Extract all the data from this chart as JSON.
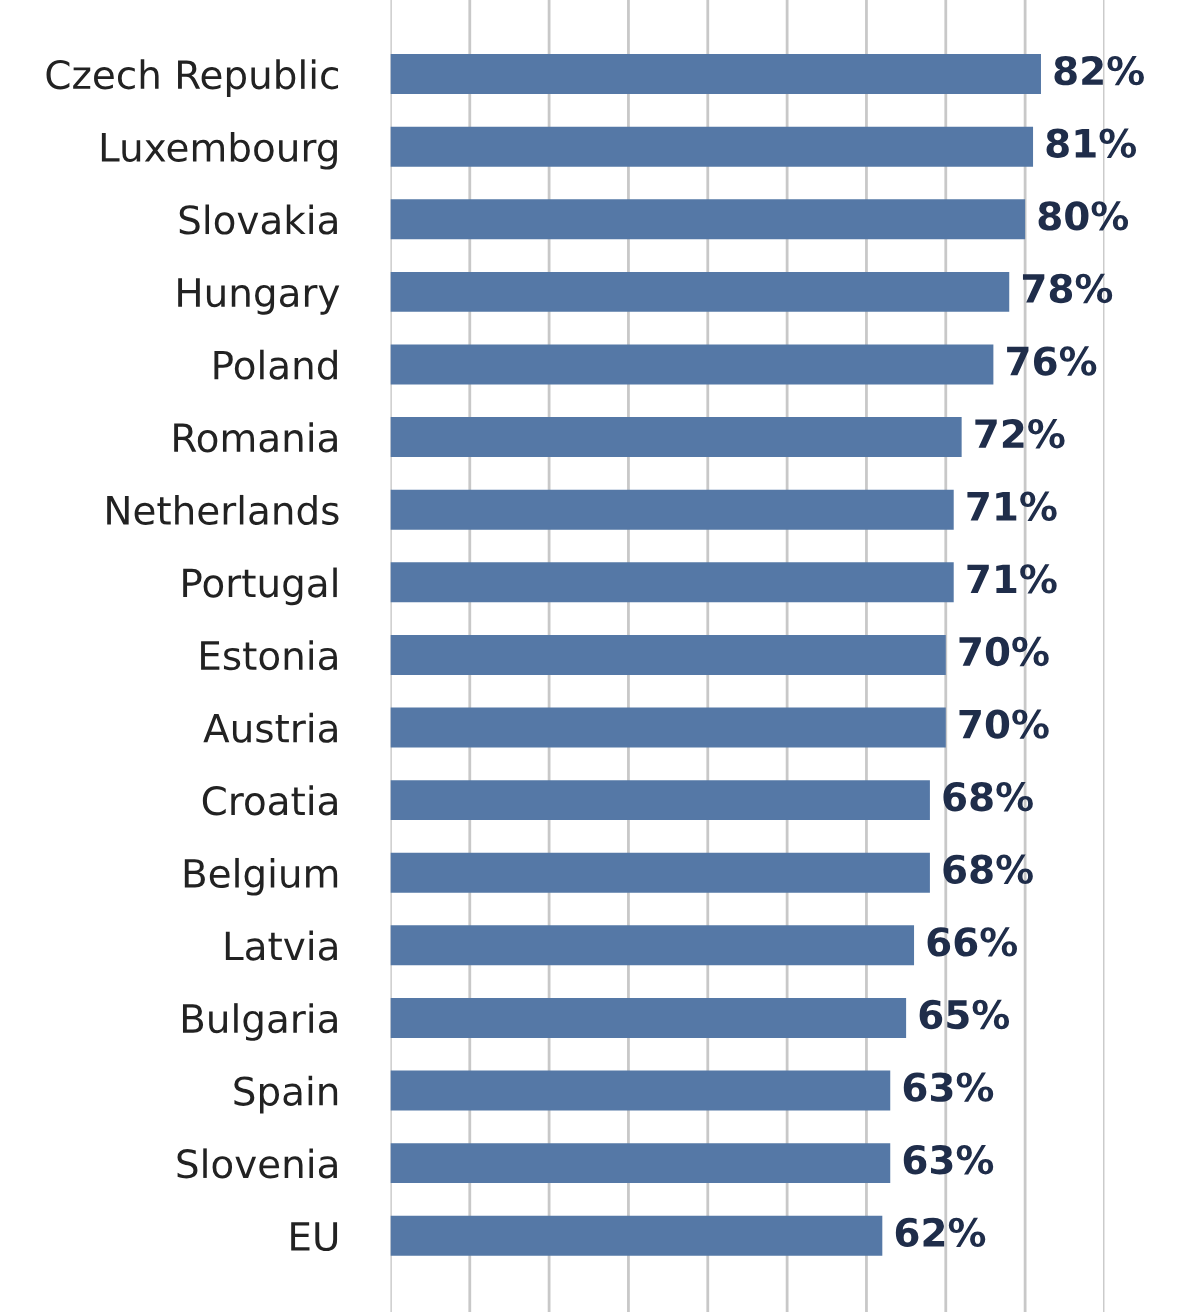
{
  "chart_data": {
    "type": "bar",
    "orientation": "horizontal",
    "categories": [
      "Czech Republic",
      "Luxembourg",
      "Slovakia",
      "Hungary",
      "Poland",
      "Romania",
      "Netherlands",
      "Portugal",
      "Estonia",
      "Austria",
      "Croatia",
      "Belgium",
      "Latvia",
      "Bulgaria",
      "Spain",
      "Slovenia",
      "EU"
    ],
    "values": [
      82,
      81,
      80,
      78,
      76,
      72,
      71,
      71,
      70,
      70,
      68,
      68,
      66,
      65,
      63,
      63,
      62
    ],
    "value_labels": [
      "82%",
      "81%",
      "80%",
      "78%",
      "76%",
      "72%",
      "71%",
      "71%",
      "70%",
      "70%",
      "68%",
      "68%",
      "66%",
      "65%",
      "63%",
      "63%",
      "62%"
    ],
    "color": "#5578a6",
    "xlim": [
      0,
      90
    ],
    "xticks": [
      {
        "value": 0,
        "label": null
      },
      {
        "value": 10,
        "label": null
      },
      {
        "value": 20,
        "label": null
      },
      {
        "value": 30,
        "label": null
      },
      {
        "value": 40,
        "label": null
      },
      {
        "value": 50,
        "label": null
      },
      {
        "value": 60,
        "label": null
      },
      {
        "value": 70,
        "label": null
      },
      {
        "value": 80,
        "label": null
      },
      {
        "value": 90,
        "label": null
      }
    ],
    "grid": "x"
  }
}
